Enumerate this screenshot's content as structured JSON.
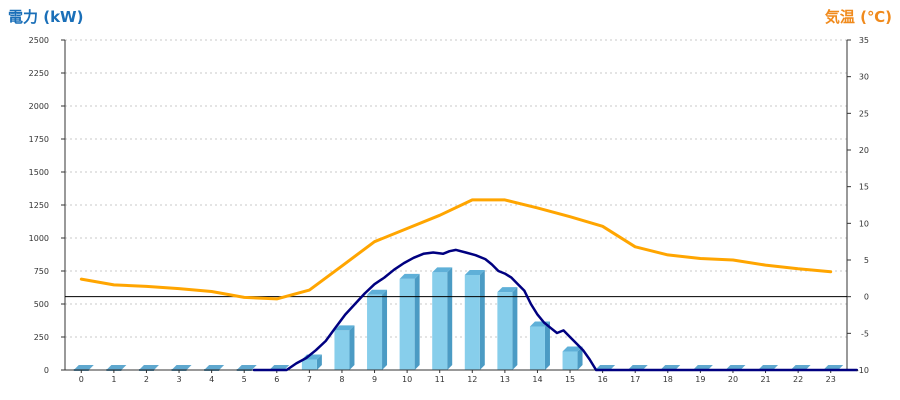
{
  "chart_data": {
    "type": "bar",
    "title_left": "電力 (kW)",
    "title_right": "気温 (℃)",
    "categories": [
      "0",
      "1",
      "2",
      "3",
      "4",
      "5",
      "6",
      "7",
      "8",
      "9",
      "10",
      "11",
      "12",
      "13",
      "14",
      "15",
      "16",
      "17",
      "18",
      "19",
      "20",
      "21",
      "22",
      "23"
    ],
    "y_left": {
      "ylim": [
        0,
        2500
      ],
      "ticks": [
        0,
        250,
        500,
        750,
        1000,
        1250,
        1500,
        1750,
        2000,
        2250,
        2500
      ]
    },
    "y_right": {
      "ylim": [
        -10,
        35
      ],
      "ticks": [
        -10,
        -5,
        0,
        5,
        10,
        15,
        20,
        25,
        30,
        35
      ]
    },
    "grid": true,
    "series": [
      {
        "kind": "bar",
        "axis": "left",
        "color": "#87ceeb",
        "values": [
          0,
          0,
          0,
          0,
          0,
          0,
          0,
          80,
          300,
          570,
          690,
          740,
          720,
          590,
          330,
          140,
          0,
          0,
          0,
          0,
          0,
          0,
          0,
          0
        ]
      },
      {
        "kind": "line",
        "axis": "left",
        "color": "#000080",
        "x": [
          5.3,
          6.3,
          6.6,
          6.9,
          7.2,
          7.5,
          7.8,
          8.1,
          8.4,
          8.7,
          9.0,
          9.3,
          9.6,
          9.9,
          10.2,
          10.5,
          10.8,
          11.1,
          11.3,
          11.5,
          11.8,
          12.1,
          12.4,
          12.6,
          12.8,
          13.0,
          13.2,
          13.4,
          13.6,
          13.8,
          14.0,
          14.2,
          14.4,
          14.6,
          14.8,
          15.0,
          15.2,
          15.4,
          15.6,
          15.8,
          23.8
        ],
        "values": [
          0,
          0,
          50,
          90,
          150,
          220,
          320,
          420,
          500,
          580,
          650,
          700,
          760,
          810,
          850,
          880,
          890,
          880,
          900,
          910,
          890,
          870,
          840,
          800,
          750,
          730,
          700,
          650,
          600,
          500,
          420,
          360,
          320,
          280,
          300,
          250,
          200,
          150,
          80,
          0,
          0
        ]
      },
      {
        "kind": "line",
        "axis": "right",
        "color": "#ffa500",
        "x": [
          0,
          1,
          2,
          3,
          4,
          5,
          6,
          7,
          8,
          9,
          10,
          11,
          12,
          13,
          14,
          15,
          16,
          17,
          18,
          19,
          20,
          21,
          22,
          23
        ],
        "values": [
          2.4,
          1.6,
          1.4,
          1.1,
          0.7,
          -0.1,
          -0.3,
          0.9,
          4.2,
          7.5,
          9.3,
          11.1,
          13.2,
          13.2,
          12.1,
          10.9,
          9.6,
          6.8,
          5.7,
          5.2,
          5.0,
          4.3,
          3.8,
          3.4
        ]
      }
    ]
  }
}
